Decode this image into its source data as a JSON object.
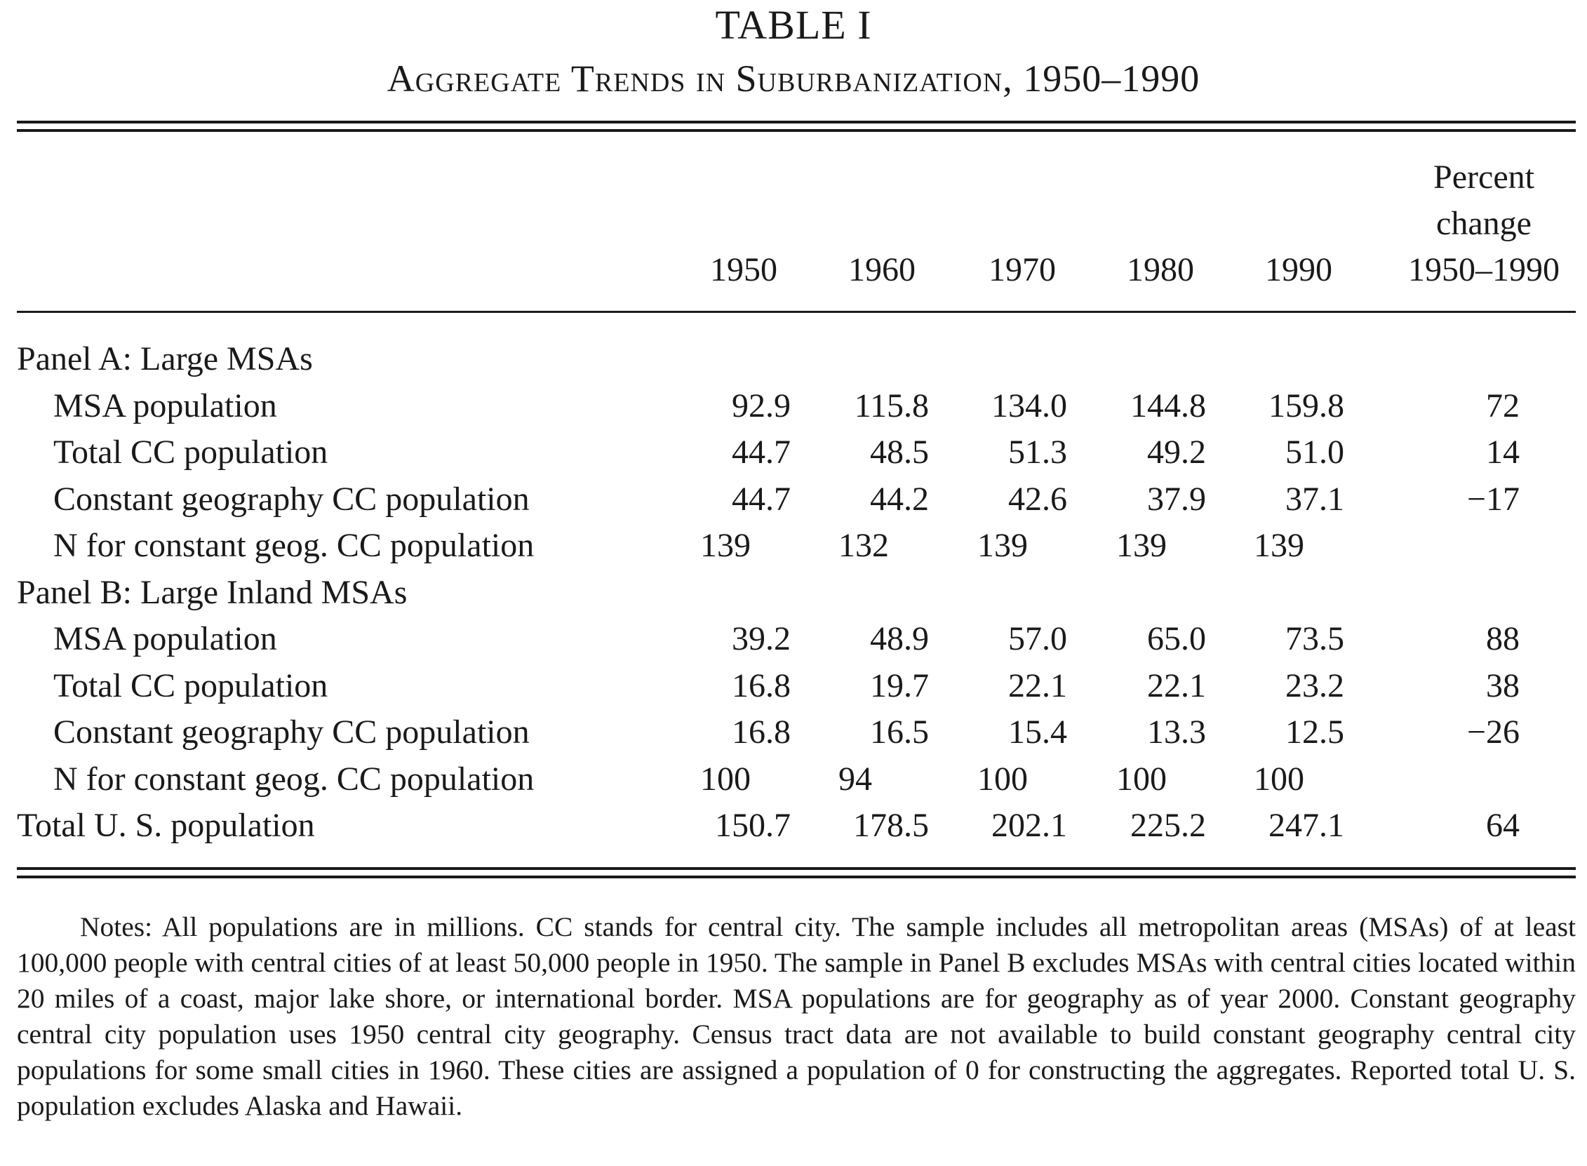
{
  "table": {
    "title": "TABLE I",
    "subtitle": "Aggregate Trends in Suburbanization, 1950–1990",
    "columns": [
      "1950",
      "1960",
      "1970",
      "1980",
      "1990"
    ],
    "pct_header": [
      "Percent",
      "change",
      "1950–1990"
    ],
    "panel_a": {
      "heading": "Panel A: Large MSAs",
      "rows": [
        {
          "label": "MSA population",
          "values": [
            "92.9",
            "115.8",
            "134.0",
            "144.8",
            "159.8"
          ],
          "pct": "72"
        },
        {
          "label": "Total CC population",
          "values": [
            "44.7",
            "48.5",
            "51.3",
            "49.2",
            "51.0"
          ],
          "pct": "14"
        },
        {
          "label": "Constant geography CC population",
          "values": [
            "44.7",
            "44.2",
            "42.6",
            "37.9",
            "37.1"
          ],
          "pct": "−17"
        },
        {
          "label": "N for constant geog. CC population",
          "values": [
            "139",
            "132",
            "139",
            "139",
            "139"
          ],
          "pct": ""
        }
      ]
    },
    "panel_b": {
      "heading": "Panel B: Large Inland MSAs",
      "rows": [
        {
          "label": "MSA population",
          "values": [
            "39.2",
            "48.9",
            "57.0",
            "65.0",
            "73.5"
          ],
          "pct": "88"
        },
        {
          "label": "Total CC population",
          "values": [
            "16.8",
            "19.7",
            "22.1",
            "22.1",
            "23.2"
          ],
          "pct": "38"
        },
        {
          "label": "Constant geography CC population",
          "values": [
            "16.8",
            "16.5",
            "15.4",
            "13.3",
            "12.5"
          ],
          "pct": "−26"
        },
        {
          "label": "N for constant geog. CC population",
          "values": [
            "100",
            "94",
            "100",
            "100",
            "100"
          ],
          "pct": ""
        }
      ]
    },
    "total": {
      "label": "Total U. S. population",
      "values": [
        "150.7",
        "178.5",
        "202.1",
        "225.2",
        "247.1"
      ],
      "pct": "64"
    }
  },
  "notes": "Notes: All populations are in millions. CC stands for central city. The sample includes all metropolitan areas (MSAs) of at least 100,000 people with central cities of at least 50,000 people in 1950. The sample in Panel B excludes MSAs with central cities located within 20 miles of a coast, major lake shore, or international border. MSA populations are for geography as of year 2000. Constant geography central city population uses 1950 central city geography. Census tract data are not available to build constant geography central city populations for some small cities in 1960. These cities are assigned a population of 0 for constructing the aggregates. Reported total U. S. population excludes Alaska and Hawaii."
}
